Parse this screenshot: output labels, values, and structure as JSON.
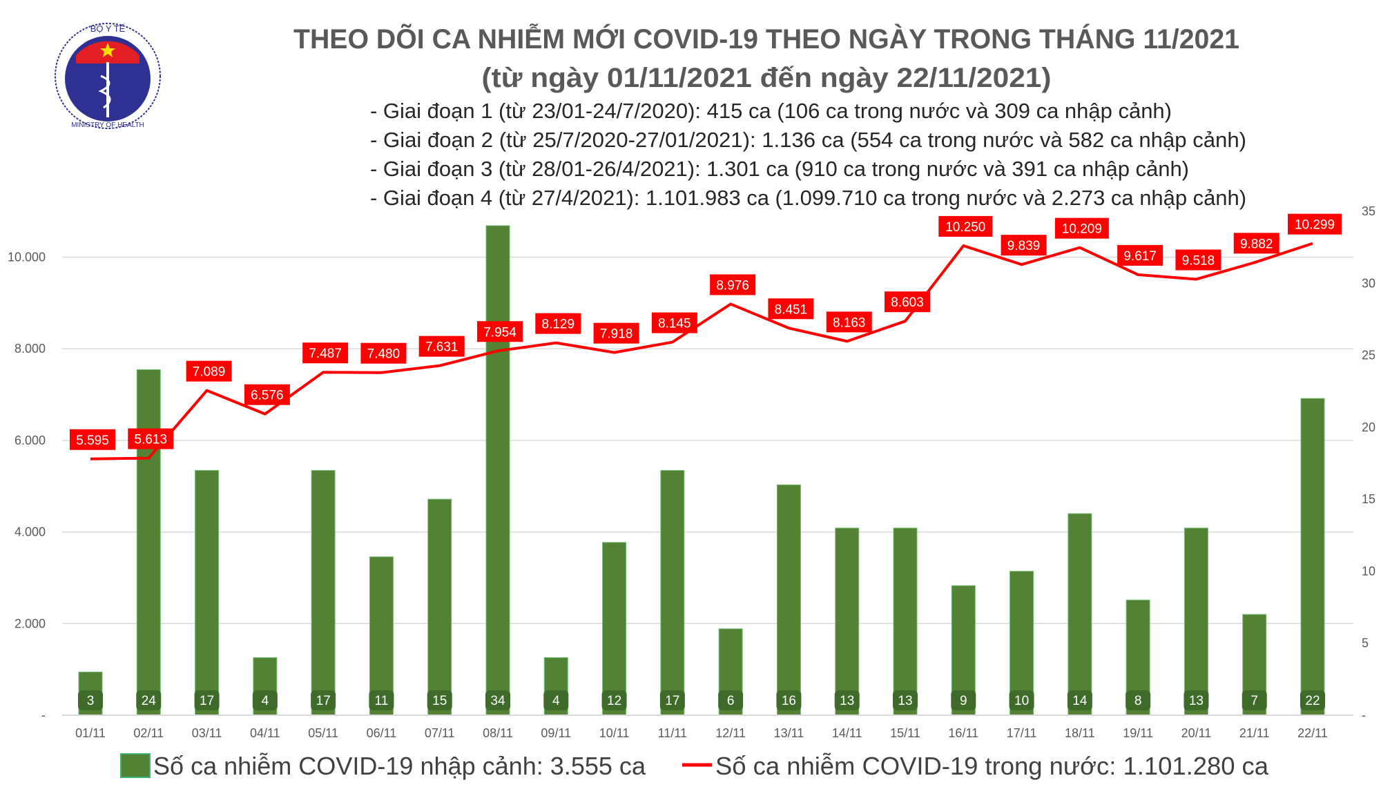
{
  "logo": {
    "text_top": "BỘ Y TẾ",
    "text_bottom": "MINISTRY OF HEALTH"
  },
  "header": {
    "title": "THEO DÕI CA NHIỄM MỚI COVID-19 THEO NGÀY TRONG THÁNG 11/2021",
    "subtitle": "(từ ngày 01/11/2021 đến ngày 22/11/2021)",
    "phases": [
      "- Giai đoạn 1 (từ 23/01-24/7/2020): 415 ca (106 ca trong nước và 309 ca nhập cảnh)",
      "- Giai đoạn 2 (từ 25/7/2020-27/01/2021): 1.136 ca (554 ca trong nước và 582 ca nhập cảnh)",
      "- Giai đoạn 3 (từ 28/01-26/4/2021): 1.301 ca (910 ca trong nước và 391 ca nhập cảnh)",
      "- Giai đoạn 4 (từ 27/4/2021): 1.101.983 ca (1.099.710 ca trong nước và 2.273 ca nhập cảnh)"
    ]
  },
  "chart_data": {
    "type": "bar+line",
    "categories": [
      "01/11",
      "02/11",
      "03/11",
      "04/11",
      "05/11",
      "06/11",
      "07/11",
      "08/11",
      "09/11",
      "10/11",
      "11/11",
      "12/11",
      "13/11",
      "14/11",
      "15/11",
      "16/11",
      "17/11",
      "18/11",
      "19/11",
      "20/11",
      "21/11",
      "22/11"
    ],
    "series": [
      {
        "name": "Số ca nhiễm COVID-19 nhập cảnh: 3.555 ca",
        "type": "bar",
        "axis": "right",
        "color": "#548235",
        "values": [
          3,
          24,
          17,
          4,
          17,
          11,
          15,
          34,
          4,
          12,
          17,
          6,
          16,
          13,
          13,
          9,
          10,
          14,
          8,
          13,
          7,
          22
        ],
        "labels": [
          "3",
          "24",
          "17",
          "4",
          "17",
          "11",
          "15",
          "34",
          "4",
          "12",
          "17",
          "6",
          "16",
          "13",
          "13",
          "9",
          "10",
          "14",
          "8",
          "13",
          "7",
          "22"
        ]
      },
      {
        "name": "Số ca nhiễm COVID-19 trong nước: 1.101.280 ca",
        "type": "line",
        "axis": "left",
        "color": "#ff0000",
        "values": [
          5595,
          5613,
          7089,
          6576,
          7487,
          7480,
          7631,
          7954,
          8129,
          7918,
          8145,
          8976,
          8451,
          8163,
          8603,
          10250,
          9839,
          10209,
          9617,
          9518,
          9882,
          10299
        ],
        "labels": [
          "5.595",
          "5.613",
          "7.089",
          "6.576",
          "7.487",
          "7.480",
          "7.631",
          "7.954",
          "8.129",
          "7.918",
          "8.145",
          "8.976",
          "8.451",
          "8.163",
          "8.603",
          "10.250",
          "9.839",
          "10.209",
          "9.617",
          "9.518",
          "9.882",
          "10.299"
        ]
      }
    ],
    "left_axis": {
      "ylim": [
        0,
        10000
      ],
      "ticks": [
        0,
        2000,
        4000,
        6000,
        8000,
        10000
      ],
      "tick_labels": [
        "-",
        "2.000",
        "4.000",
        "6.000",
        "8.000",
        "10.000"
      ]
    },
    "right_axis": {
      "ylim": [
        0,
        35
      ],
      "ticks": [
        0,
        5,
        10,
        15,
        20,
        25,
        30,
        35
      ],
      "tick_labels": [
        "-",
        "5",
        "10",
        "15",
        "20",
        "25",
        "30",
        "35"
      ]
    },
    "grid": true,
    "legend": "bottom"
  }
}
